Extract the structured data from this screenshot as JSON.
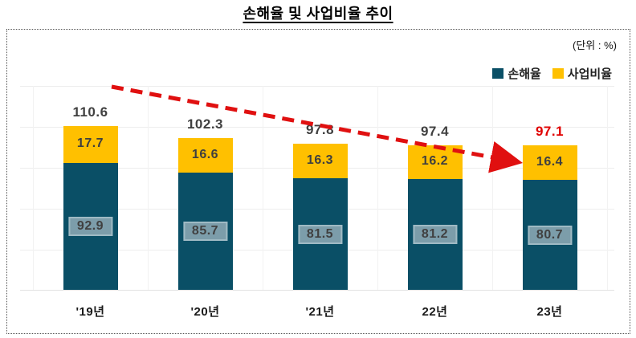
{
  "title": "손해율 및 사업비율 추이",
  "unit_label": "(단위 : %)",
  "colors": {
    "loss_ratio": "#0a4f66",
    "expense_ratio": "#ffc000",
    "trend_arrow": "#e01010",
    "total_default": "#404040",
    "total_highlight": "#e00000",
    "teal_label_bg": "#7c9daa",
    "teal_label_border": "#9fbac4"
  },
  "chart_data": {
    "type": "bar",
    "stacked": true,
    "title": "손해율 및 사업비율 추이",
    "unit": "%",
    "categories": [
      "'19년",
      "'20년",
      "'21년",
      "22년",
      "23년"
    ],
    "series": [
      {
        "name": "손해율",
        "color": "#0a4f66",
        "values": [
          92.9,
          85.7,
          81.5,
          81.2,
          80.7
        ]
      },
      {
        "name": "사업비율",
        "color": "#ffc000",
        "values": [
          17.7,
          16.6,
          16.3,
          16.2,
          16.4
        ]
      }
    ],
    "totals": [
      "110.6",
      "102.3",
      "97.8",
      "97.4",
      "97.1"
    ],
    "totals_highlight_index": 4,
    "legend_position": "top-right",
    "grid": true,
    "annotation": "downward red dashed trend arrow across totals"
  }
}
